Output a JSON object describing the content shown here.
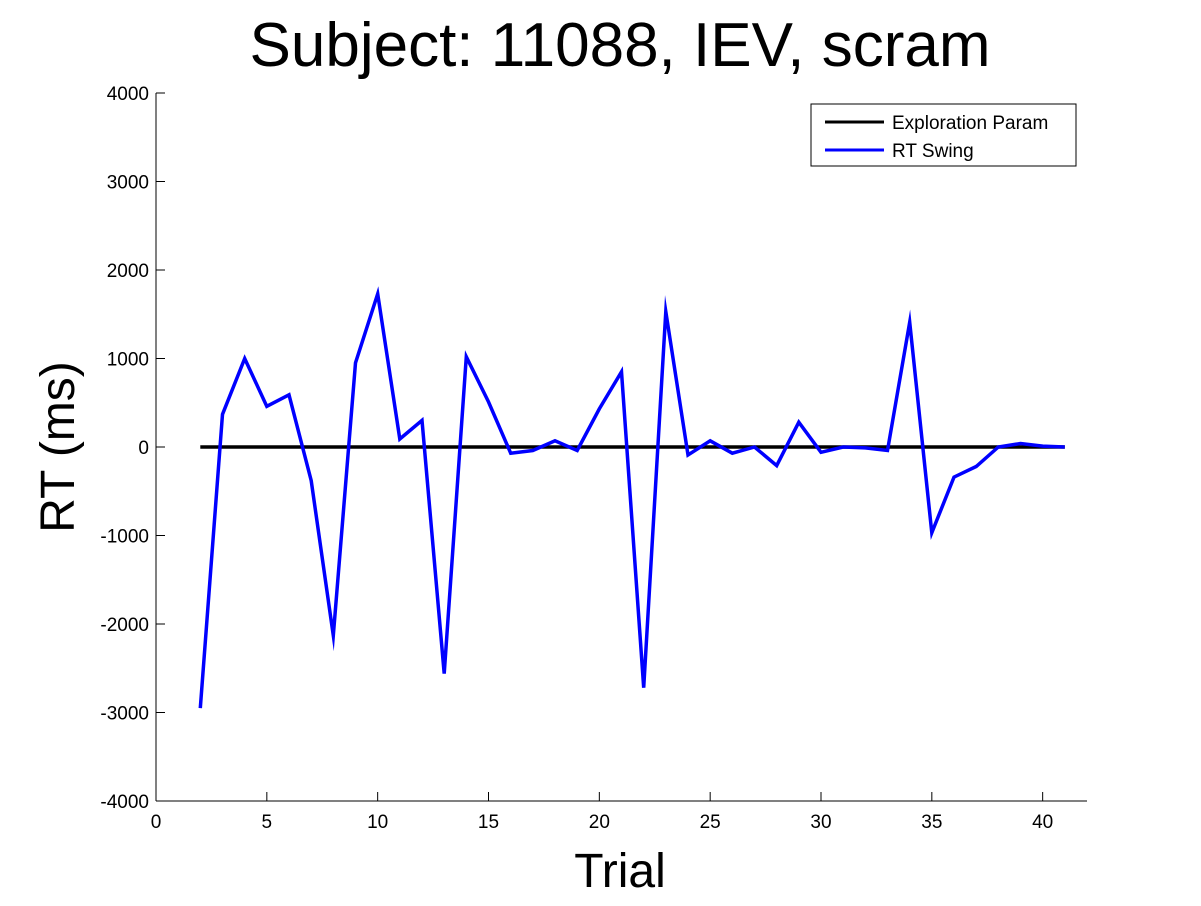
{
  "chart_data": {
    "type": "line",
    "title": "Subject: 11088, IEV, scram",
    "xlabel": "Trial",
    "ylabel": "RT (ms)",
    "xlim": [
      0,
      42
    ],
    "ylim": [
      -4000,
      4000
    ],
    "xticks": [
      0,
      5,
      10,
      15,
      20,
      25,
      30,
      35,
      40
    ],
    "yticks": [
      -4000,
      -3000,
      -2000,
      -1000,
      0,
      1000,
      2000,
      3000,
      4000
    ],
    "grid": false,
    "legend_position": "top-right",
    "series": [
      {
        "name": "Exploration Param",
        "color": "#000000",
        "x": [
          2,
          41
        ],
        "y": [
          0,
          0
        ]
      },
      {
        "name": "RT Swing",
        "color": "#0000ff",
        "x": [
          2,
          3,
          4,
          5,
          6,
          7,
          8,
          9,
          10,
          11,
          12,
          13,
          14,
          15,
          16,
          17,
          18,
          19,
          20,
          21,
          22,
          23,
          24,
          25,
          26,
          27,
          28,
          29,
          30,
          31,
          32,
          33,
          34,
          35,
          36,
          37,
          38,
          39,
          40,
          41
        ],
        "y": [
          -2950,
          370,
          1000,
          460,
          590,
          -380,
          -2130,
          950,
          1730,
          90,
          300,
          -2560,
          1020,
          510,
          -70,
          -40,
          70,
          -40,
          430,
          850,
          -2720,
          1530,
          -90,
          70,
          -70,
          0,
          -210,
          280,
          -60,
          0,
          -10,
          -40,
          1410,
          -970,
          -340,
          -220,
          0,
          40,
          10,
          0
        ]
      }
    ]
  }
}
